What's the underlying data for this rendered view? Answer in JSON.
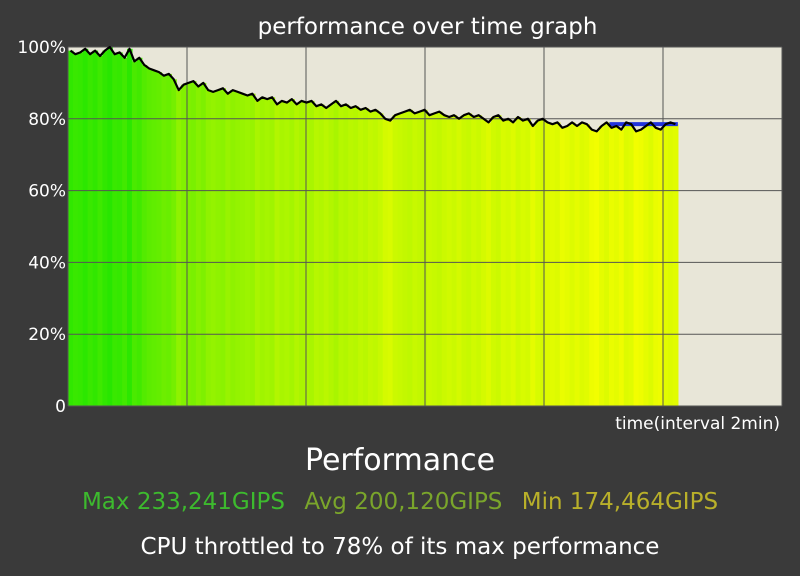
{
  "window": {
    "chart_title": "performance over time graph"
  },
  "summary": {
    "section_title": "Performance",
    "max_label": "Max 233,241GIPS",
    "avg_label": "Avg 200,120GIPS",
    "min_label": "Min 174,464GIPS",
    "throttle_message": "CPU throttled to 78% of its max performance"
  },
  "colors": {
    "background": "#3a3a3a",
    "plot_background": "#e8e6d8",
    "line": "#000000",
    "avg_line": "#2233dd",
    "max_color": "#3dba2e",
    "avg_color": "#7aa52b",
    "min_color": "#b9b02a"
  },
  "chart_data": {
    "type": "area",
    "title": "performance over time graph",
    "xlabel": "time(interval 2min)",
    "ylabel": "",
    "y_ticks": [
      "100%",
      "80%",
      "60%",
      "40%",
      "20%",
      "0"
    ],
    "ylim": [
      0,
      100
    ],
    "x_interval_minutes": 2,
    "xlim_minutes": [
      0,
      12
    ],
    "grid": true,
    "series": [
      {
        "values_percent": [
          99,
          98,
          98.5,
          99.5,
          98,
          99,
          97.5,
          99,
          100,
          98,
          98.5,
          97,
          99.5,
          96,
          97,
          95,
          94,
          93.5,
          93,
          92,
          92.5,
          91,
          88,
          89.5,
          90,
          90.5,
          89,
          90,
          88,
          87.5,
          88,
          88.5,
          87,
          88,
          87.5,
          87,
          86.5,
          87,
          85,
          86,
          85.5,
          86,
          84,
          85,
          84.5,
          85.5,
          84,
          85,
          84.5,
          85,
          83.5,
          84,
          83,
          84,
          85,
          83.5,
          84,
          83,
          83.5,
          82.5,
          83,
          82,
          82.5,
          81.5,
          80,
          79.5,
          81,
          81.5,
          82,
          82.5,
          81.5,
          82,
          82.5,
          81,
          81.5,
          82,
          81,
          80.5,
          81,
          80,
          81,
          81.5,
          80.5,
          81,
          80,
          79,
          80.5,
          81,
          79.5,
          80,
          79,
          80.5,
          79.5,
          80,
          78,
          79.5,
          80,
          79,
          78.5,
          79,
          77.5,
          78,
          79,
          78,
          79,
          78.5,
          77,
          76.5,
          78,
          79,
          77.5,
          78,
          77,
          79,
          78.5,
          76.5,
          77,
          78,
          79,
          77.5,
          77,
          78.5,
          79,
          78.5
        ]
      }
    ],
    "average_percent": 78.5,
    "average_from_minute": 9.1
  }
}
